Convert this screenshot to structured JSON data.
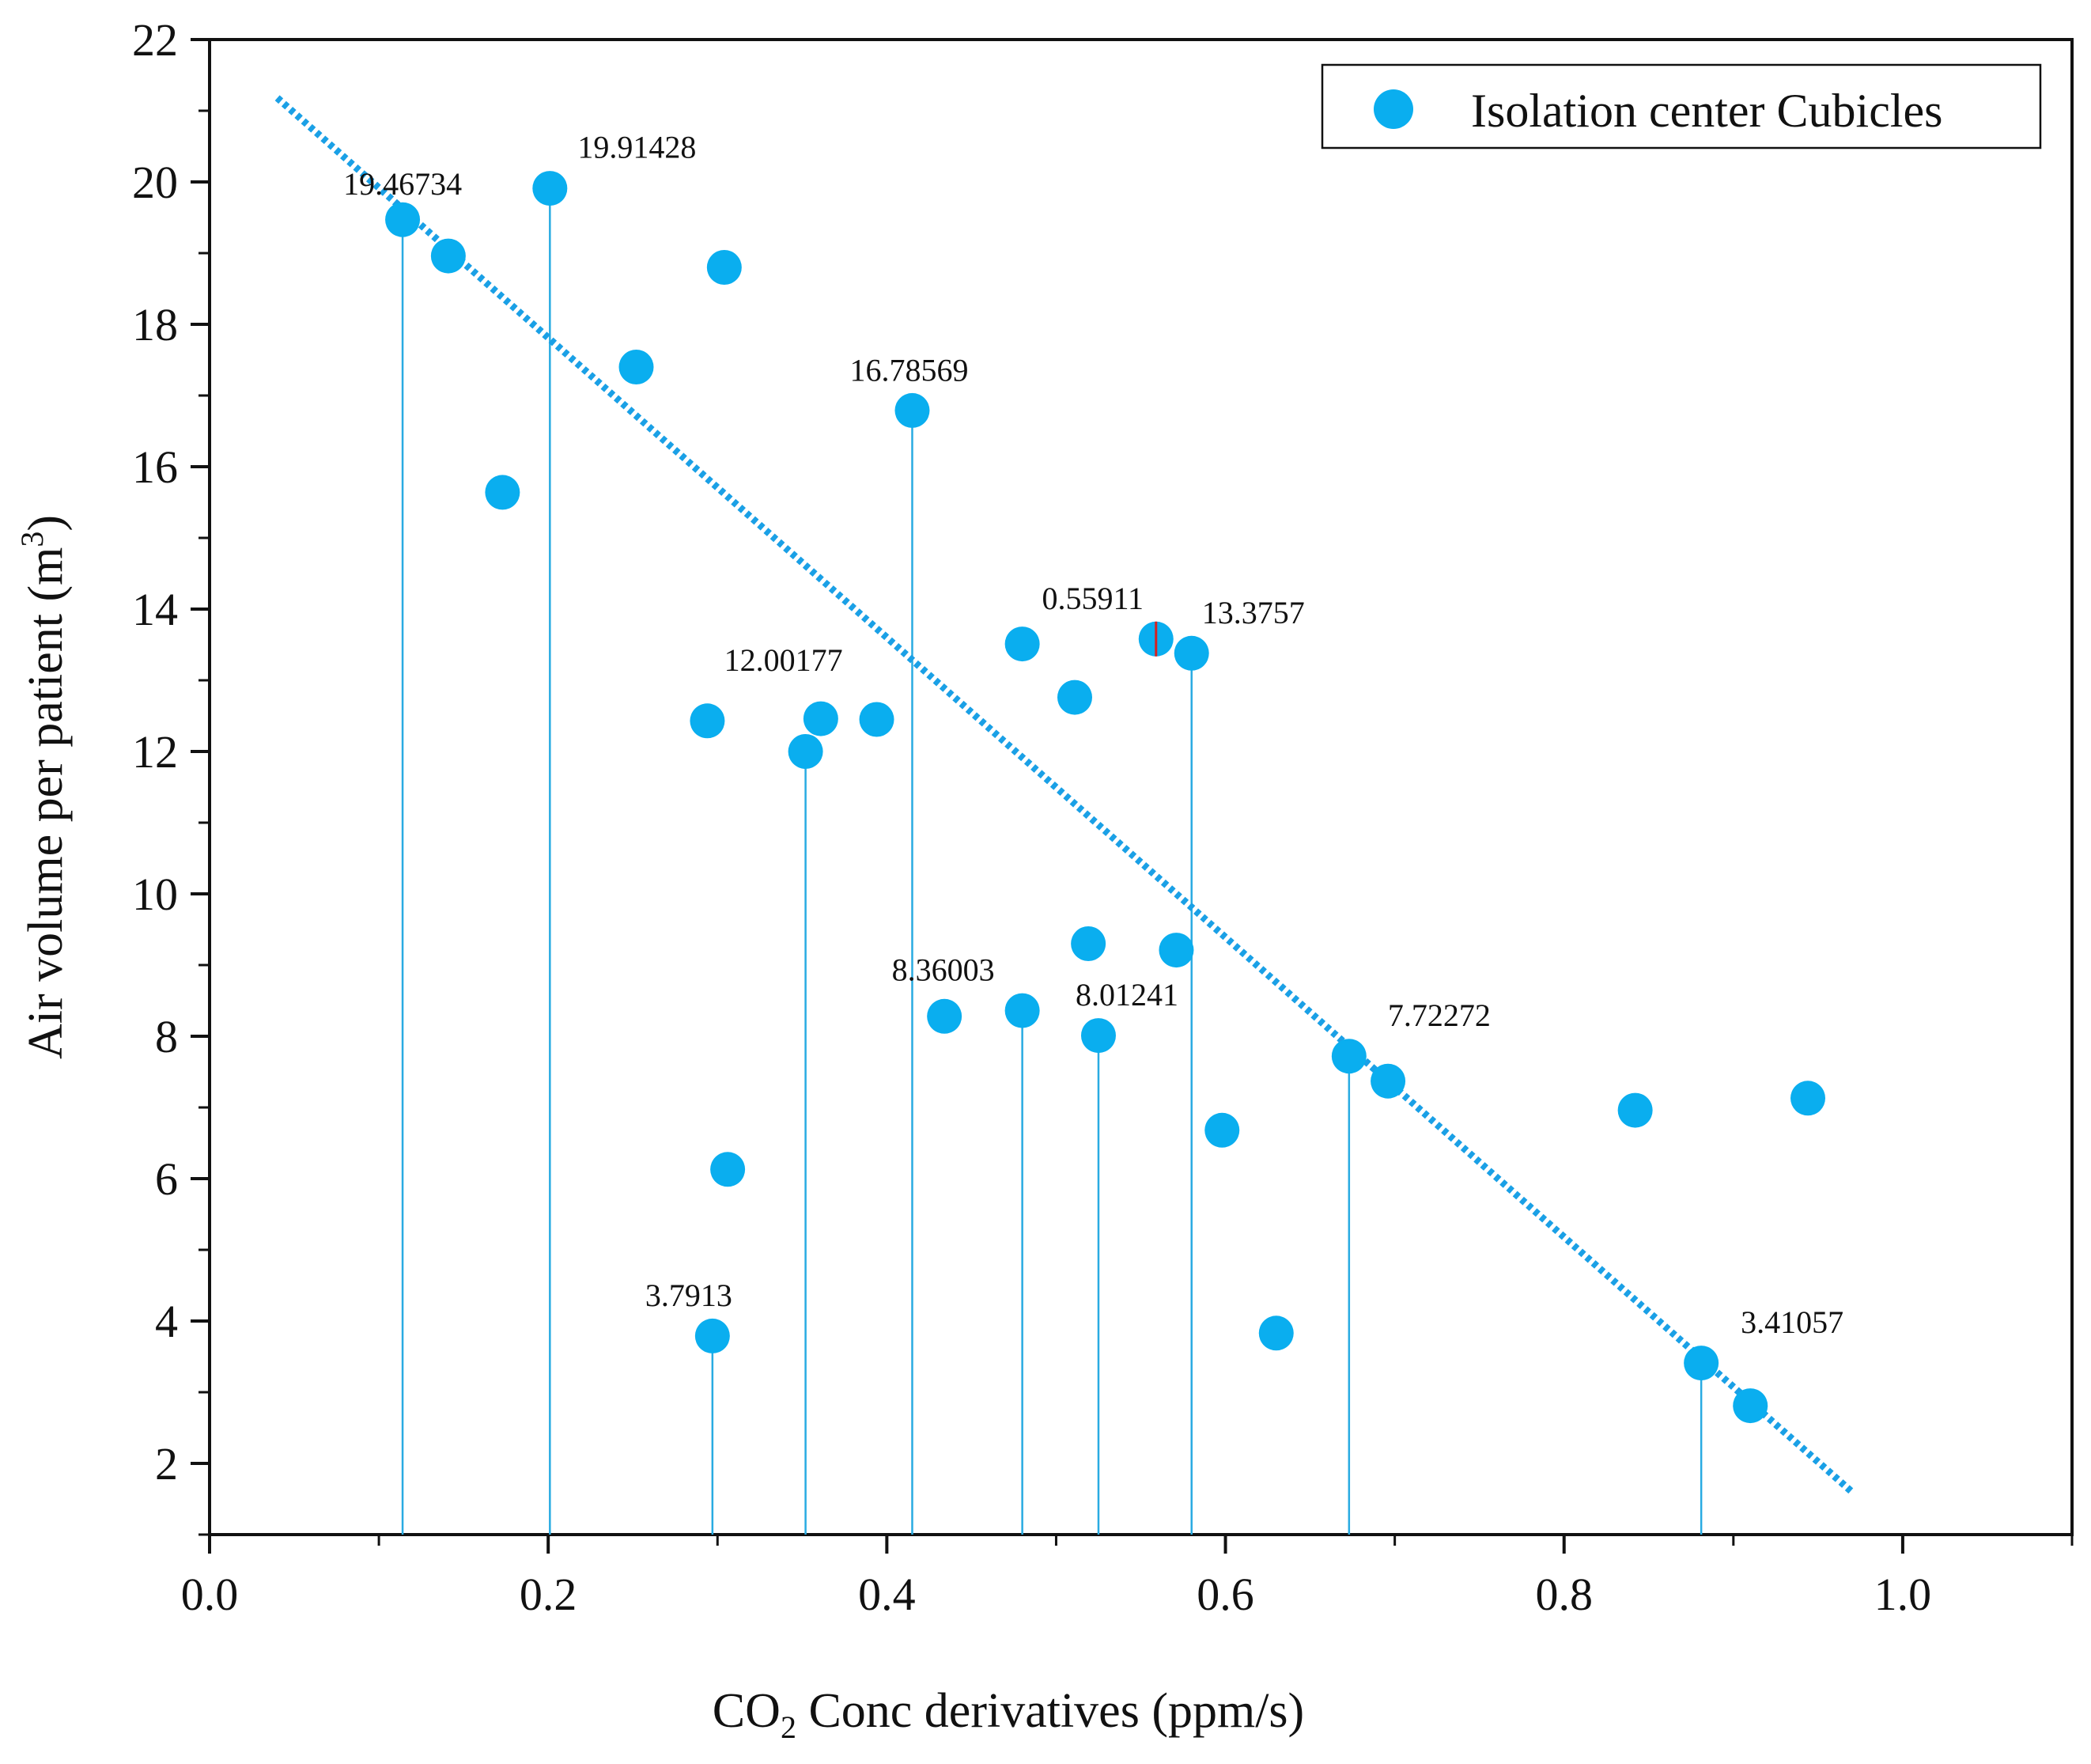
{
  "chart_data": {
    "type": "scatter",
    "title": "",
    "xlabel": {
      "main": "CO",
      "sub": "2",
      "rest": " Conc derivatives (ppm/s)"
    },
    "ylabel": {
      "main": "Air volume per patient (m",
      "sup": "3",
      "rest": ")"
    },
    "xlim": [
      0.0,
      1.1
    ],
    "ylim": [
      1.0,
      22.0
    ],
    "x_ticks": [
      "0.0",
      "0.2",
      "0.4",
      "0.6",
      "0.8",
      "1.0"
    ],
    "x_tick_values": [
      0.0,
      0.2,
      0.4,
      0.6,
      0.8,
      1.0
    ],
    "y_ticks": [
      "2",
      "4",
      "6",
      "8",
      "10",
      "12",
      "14",
      "16",
      "18",
      "20",
      "22"
    ],
    "y_tick_values": [
      2,
      4,
      6,
      8,
      10,
      12,
      14,
      16,
      18,
      20,
      22
    ],
    "grid": false,
    "legend": {
      "position": "top-right",
      "entries": [
        "Isolation center Cubicles"
      ]
    },
    "colors": {
      "points": "#0aaeef",
      "trend": "#1aa0e6",
      "drop": "#29abe2",
      "marker_red": "#d62020",
      "axes": "#111111"
    },
    "series": [
      {
        "name": "Isolation center Cubicles",
        "x": [
          0.114,
          0.141,
          0.173,
          0.201,
          0.252,
          0.294,
          0.297,
          0.304,
          0.306,
          0.352,
          0.361,
          0.394,
          0.415,
          0.434,
          0.48,
          0.48,
          0.511,
          0.519,
          0.525,
          0.559,
          0.571,
          0.58,
          0.598,
          0.63,
          0.673,
          0.696,
          0.842,
          0.881,
          0.91,
          0.944
        ],
        "y": [
          19.47,
          18.96,
          15.64,
          19.91,
          17.4,
          12.43,
          3.79,
          18.8,
          6.13,
          12.0,
          12.46,
          12.45,
          16.79,
          8.28,
          8.36,
          13.51,
          12.76,
          9.3,
          8.01,
          13.58,
          9.21,
          13.38,
          6.68,
          3.83,
          7.72,
          7.37,
          6.96,
          3.41,
          2.81,
          7.13
        ]
      }
    ],
    "trendline": {
      "style": "dotted",
      "x": [
        0.04,
        0.97
      ],
      "y": [
        21.18,
        1.6
      ]
    },
    "annotations": [
      {
        "x": 0.114,
        "y": 19.46734,
        "label": "19.46734",
        "drop": true,
        "dx": 0,
        "dy": -32
      },
      {
        "x": 0.201,
        "y": 19.91428,
        "label": "19.91428",
        "drop": true,
        "dx": 110,
        "dy": -38
      },
      {
        "x": 0.415,
        "y": 16.78569,
        "label": "16.78569",
        "drop": true,
        "dx": -4,
        "dy": -38
      },
      {
        "x": 0.352,
        "y": 12.00177,
        "label": "12.00177",
        "drop": true,
        "dx": -28,
        "dy": -102
      },
      {
        "x": 0.559,
        "y": 13.58,
        "label": "0.55911",
        "drop": false,
        "dx": -80,
        "dy": -38
      },
      {
        "x": 0.58,
        "y": 13.3757,
        "label": "13.3757",
        "drop": true,
        "dx": 78,
        "dy": -38
      },
      {
        "x": 0.48,
        "y": 8.36003,
        "label": "8.36003",
        "drop": true,
        "dx": -100,
        "dy": -38
      },
      {
        "x": 0.525,
        "y": 8.01241,
        "label": "8.01241",
        "drop": true,
        "dx": 36,
        "dy": -38
      },
      {
        "x": 0.297,
        "y": 3.7913,
        "label": "3.7913",
        "drop": true,
        "dx": -30,
        "dy": -38
      },
      {
        "x": 0.673,
        "y": 7.72272,
        "label": "7.72272",
        "drop": true,
        "dx": 114,
        "dy": -38
      },
      {
        "x": 0.881,
        "y": 3.41057,
        "label": "3.41057",
        "drop": true,
        "dx": 115,
        "dy": -38
      }
    ],
    "red_marker": {
      "x": 0.559,
      "y": 13.58
    }
  }
}
